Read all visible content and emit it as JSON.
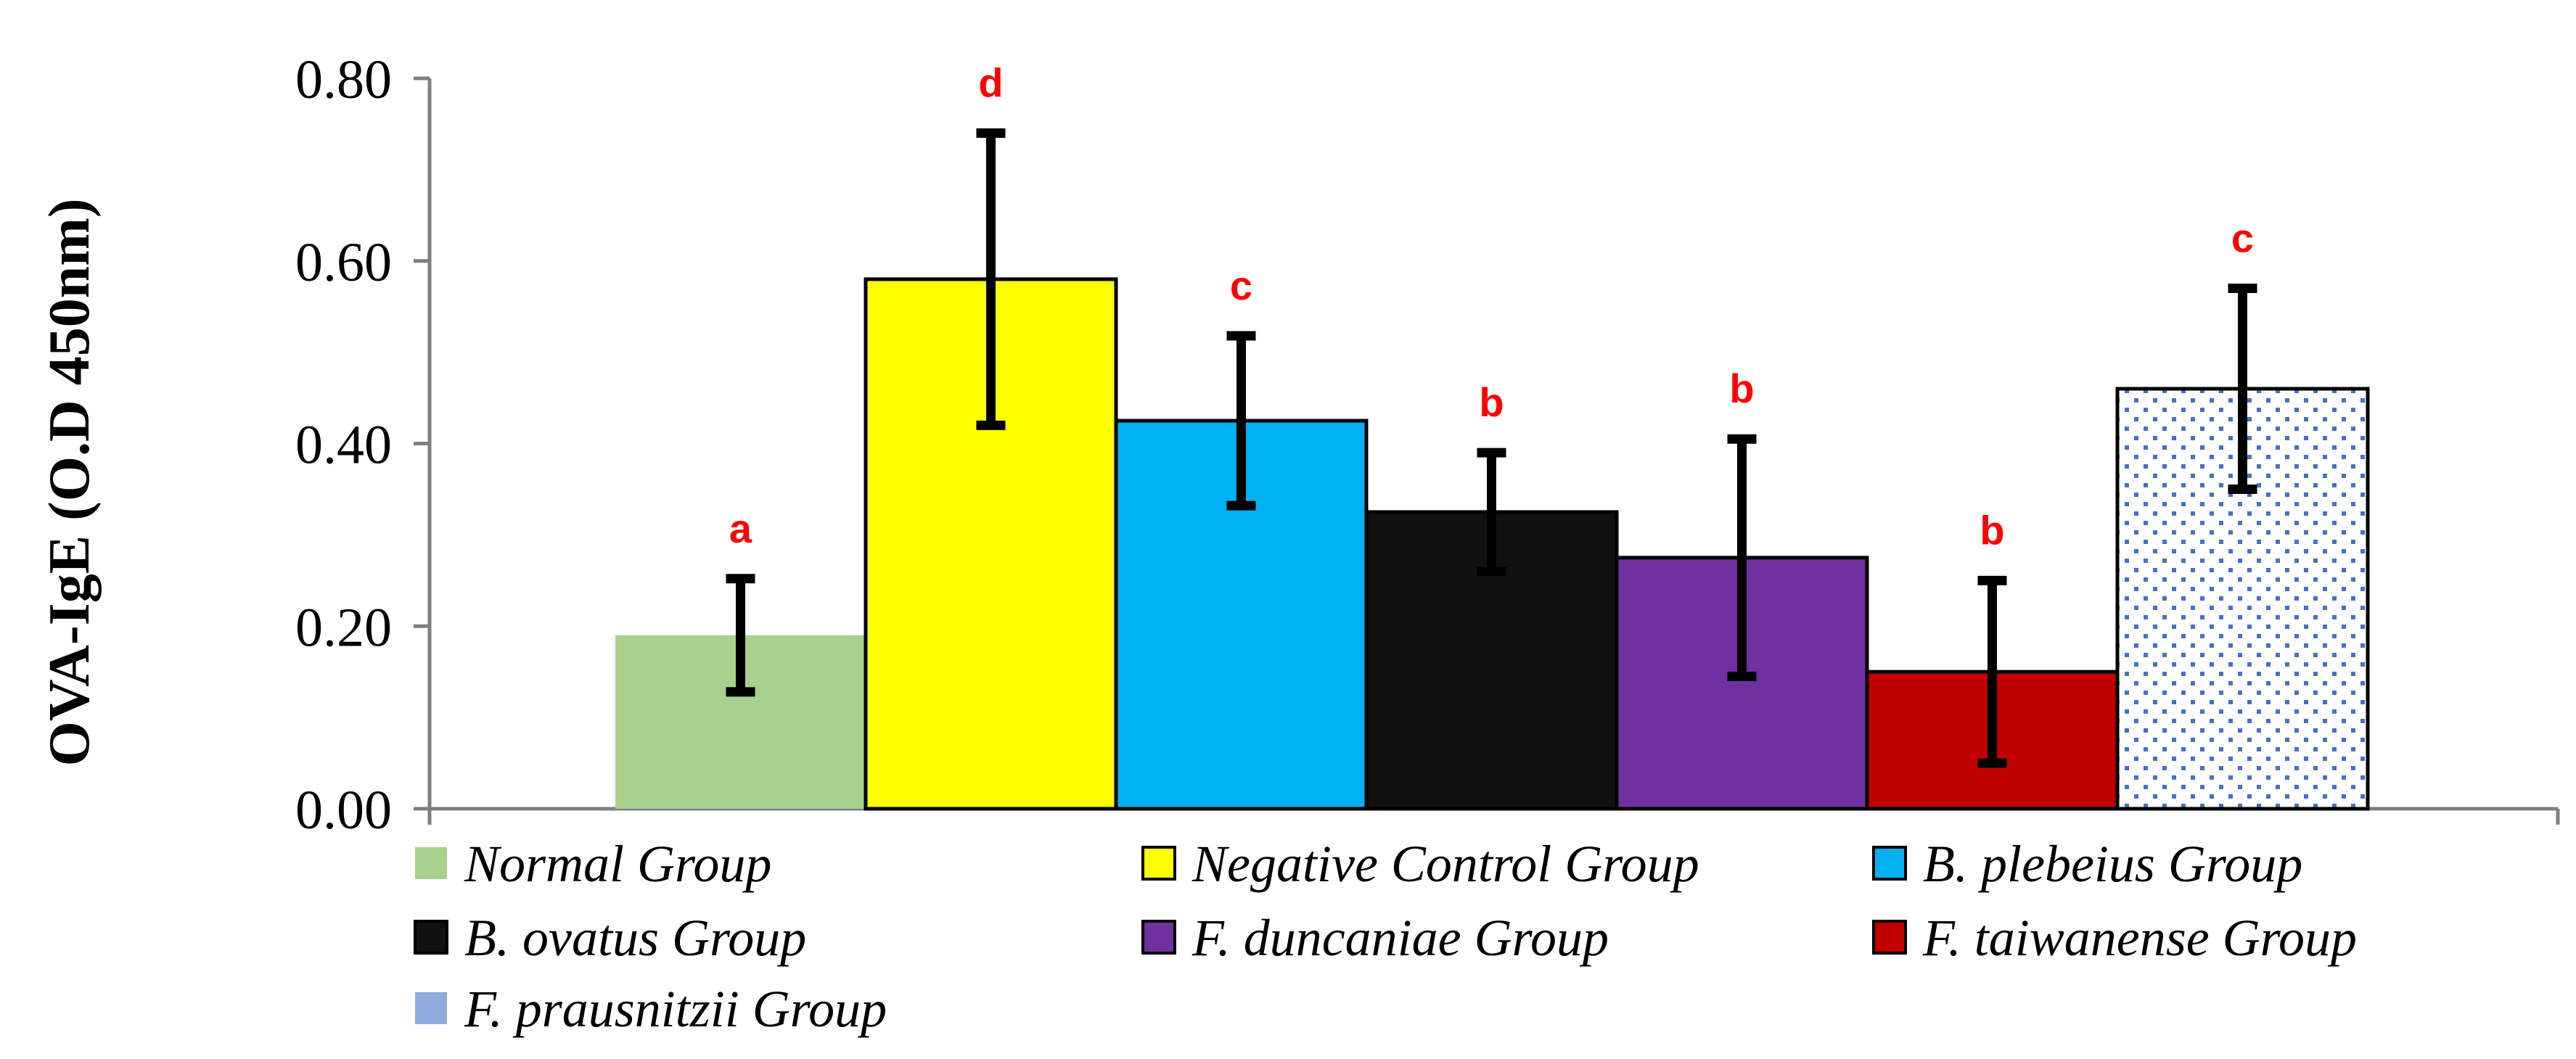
{
  "chart_data": {
    "type": "bar",
    "title": "",
    "xlabel": "",
    "ylabel": "OVA-IgE (O.D 450nm)",
    "ylim": [
      0,
      0.8
    ],
    "yticks": [
      "0.00",
      "0.20",
      "0.40",
      "0.60",
      "0.80"
    ],
    "grid": false,
    "legend_position": "bottom",
    "series": [
      {
        "name": "Normal Group",
        "value": 0.19,
        "error": 0.062,
        "significance": "a",
        "color": "#a9d18e",
        "pattern": "solid"
      },
      {
        "name": "Negative Control Group",
        "value": 0.58,
        "error": 0.16,
        "significance": "d",
        "color": "#ffff00",
        "pattern": "solid"
      },
      {
        "name": "B. plebeius Group",
        "value": 0.425,
        "error": 0.093,
        "significance": "c",
        "color": "#00b0f0",
        "pattern": "solid"
      },
      {
        "name": "B. ovatus Group",
        "value": 0.325,
        "error": 0.065,
        "significance": "b",
        "color": "#111111",
        "pattern": "solid"
      },
      {
        "name": "F. duncaniae Group",
        "value": 0.275,
        "error": 0.13,
        "significance": "b",
        "color": "#7030a0",
        "pattern": "solid"
      },
      {
        "name": "F. taiwanense Group",
        "value": 0.15,
        "error": 0.1,
        "significance": "b",
        "color": "#c00000",
        "pattern": "solid"
      },
      {
        "name": "F. prausnitzii Group",
        "value": 0.46,
        "error": 0.11,
        "significance": "c",
        "color": "#4472c4",
        "pattern": "dots",
        "legend_color": "#8faadc"
      }
    ]
  }
}
